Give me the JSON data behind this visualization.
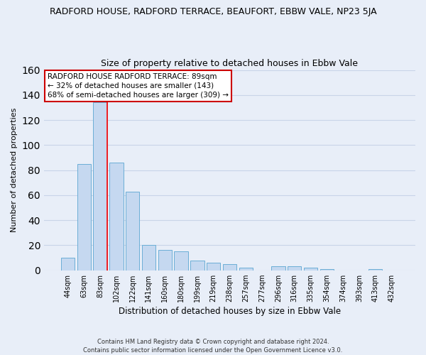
{
  "title": "RADFORD HOUSE, RADFORD TERRACE, BEAUFORT, EBBW VALE, NP23 5JA",
  "subtitle": "Size of property relative to detached houses in Ebbw Vale",
  "xlabel": "Distribution of detached houses by size in Ebbw Vale",
  "ylabel": "Number of detached properties",
  "bar_labels": [
    "44sqm",
    "63sqm",
    "83sqm",
    "102sqm",
    "122sqm",
    "141sqm",
    "160sqm",
    "180sqm",
    "199sqm",
    "219sqm",
    "238sqm",
    "257sqm",
    "277sqm",
    "296sqm",
    "316sqm",
    "335sqm",
    "354sqm",
    "374sqm",
    "393sqm",
    "413sqm",
    "432sqm"
  ],
  "bar_values": [
    10,
    85,
    134,
    86,
    63,
    20,
    16,
    15,
    8,
    6,
    5,
    2,
    0,
    3,
    3,
    2,
    1,
    0,
    0,
    1,
    0
  ],
  "bar_color": "#c5d8f0",
  "bar_edge_color": "#6baed6",
  "redline_index": 2,
  "ylim": [
    0,
    160
  ],
  "yticks": [
    0,
    20,
    40,
    60,
    80,
    100,
    120,
    140,
    160
  ],
  "annotation_title": "RADFORD HOUSE RADFORD TERRACE: 89sqm",
  "annotation_line1": "← 32% of detached houses are smaller (143)",
  "annotation_line2": "68% of semi-detached houses are larger (309) →",
  "annotation_box_color": "#ffffff",
  "annotation_box_edge": "#cc0000",
  "footer1": "Contains HM Land Registry data © Crown copyright and database right 2024.",
  "footer2": "Contains public sector information licensed under the Open Government Licence v3.0.",
  "background_color": "#e8eef8",
  "grid_color": "#c8d4e8",
  "title_fontsize": 9,
  "subtitle_fontsize": 9
}
